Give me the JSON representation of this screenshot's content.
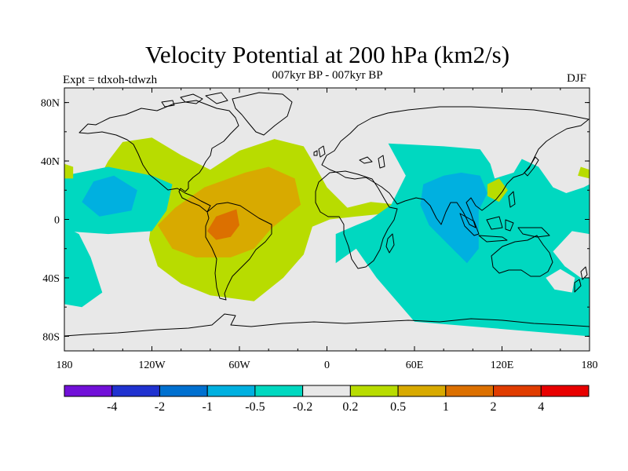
{
  "title": "Velocity Potential at 200 hPa (km2/s)",
  "subtitle": "007kyr BP - 007kyr BP",
  "experiment": "Expt = tdxoh-tdwzh",
  "season": "DJF",
  "lat_ticks": [
    "80N",
    "40N",
    "0",
    "40S",
    "80S"
  ],
  "lon_ticks": [
    "180",
    "120W",
    "60W",
    "0",
    "60E",
    "120E",
    "180"
  ],
  "colorbar": {
    "colors": [
      "#7110d8",
      "#2032d0",
      "#0070d0",
      "#00b0e0",
      "#00d8c0",
      "#e8e8e8",
      "#b8dc00",
      "#d8aa00",
      "#dc7000",
      "#e03c00",
      "#e80000"
    ],
    "labels": [
      "-4",
      "-2",
      "-1",
      "-0.5",
      "-0.2",
      "0.2",
      "0.5",
      "1",
      "2",
      "4"
    ]
  },
  "regions": [
    {
      "level": "0.2 to 0.5",
      "color": "#b8dc00",
      "pts": [
        [
          -180,
          -20
        ],
        [
          -166,
          10
        ],
        [
          -150,
          40
        ],
        [
          -140,
          53
        ],
        [
          -120,
          56
        ],
        [
          -100,
          44
        ],
        [
          -80,
          34
        ],
        [
          -60,
          47
        ],
        [
          -36,
          55
        ],
        [
          -16,
          50
        ],
        [
          -10,
          40
        ],
        [
          0,
          22
        ],
        [
          14,
          8
        ],
        [
          30,
          12
        ],
        [
          50,
          10
        ],
        [
          40,
          4
        ],
        [
          20,
          2
        ],
        [
          2,
          0
        ],
        [
          -10,
          -5
        ],
        [
          -16,
          -24
        ],
        [
          -30,
          -40
        ],
        [
          -50,
          -56
        ],
        [
          -80,
          -52
        ],
        [
          -100,
          -44
        ],
        [
          -116,
          -32
        ],
        [
          -122,
          -14
        ],
        [
          -120,
          0
        ],
        [
          -130,
          20
        ],
        [
          -150,
          20
        ],
        [
          -170,
          0
        ]
      ]
    },
    {
      "level": "-0.2 to -0.5",
      "color": "#00d8c0",
      "pts": [
        [
          42,
          52
        ],
        [
          80,
          50
        ],
        [
          105,
          48
        ],
        [
          128,
          44
        ],
        [
          145,
          36
        ],
        [
          155,
          22
        ],
        [
          164,
          18
        ],
        [
          176,
          22
        ],
        [
          180,
          24
        ],
        [
          180,
          -80
        ],
        [
          120,
          -75
        ],
        [
          60,
          -70
        ],
        [
          34,
          -40
        ],
        [
          20,
          -20
        ],
        [
          6,
          -30
        ],
        [
          6,
          -10
        ],
        [
          20,
          -4
        ],
        [
          30,
          0
        ],
        [
          44,
          10
        ],
        [
          54,
          30
        ]
      ]
    },
    {
      "level": "-0.2 to -0.5",
      "color": "#00d8c0",
      "pts": [
        [
          -180,
          30
        ],
        [
          -150,
          36
        ],
        [
          -120,
          30
        ],
        [
          -106,
          24
        ],
        [
          -110,
          6
        ],
        [
          -120,
          -8
        ],
        [
          -150,
          -10
        ],
        [
          -180,
          -8
        ]
      ]
    },
    {
      "level": "-0.2 to -0.5",
      "color": "#00d8c0",
      "pts": [
        [
          -180,
          -5
        ],
        [
          -170,
          -10
        ],
        [
          -162,
          -26
        ],
        [
          -154,
          -50
        ],
        [
          -168,
          -60
        ],
        [
          -180,
          -58
        ]
      ]
    },
    {
      "level": "0.5 to 1",
      "color": "#d8aa00",
      "pts": [
        [
          -116,
          -4
        ],
        [
          -104,
          8
        ],
        [
          -84,
          22
        ],
        [
          -56,
          32
        ],
        [
          -40,
          36
        ],
        [
          -22,
          28
        ],
        [
          -18,
          10
        ],
        [
          -38,
          -6
        ],
        [
          -50,
          -20
        ],
        [
          -66,
          -26
        ],
        [
          -90,
          -26
        ],
        [
          -106,
          -20
        ]
      ]
    },
    {
      "level": "1 to 2",
      "color": "#dc7000",
      "pts": [
        [
          -82,
          -8
        ],
        [
          -76,
          2
        ],
        [
          -62,
          7
        ],
        [
          -60,
          -4
        ],
        [
          -66,
          -12
        ],
        [
          -76,
          -14
        ]
      ]
    },
    {
      "level": "-0.5 to -1",
      "color": "#00b0e0",
      "pts": [
        [
          -168,
          12
        ],
        [
          -160,
          26
        ],
        [
          -146,
          30
        ],
        [
          -130,
          20
        ],
        [
          -134,
          6
        ],
        [
          -156,
          2
        ]
      ]
    },
    {
      "level": "-0.5 to -1",
      "color": "#00b0e0",
      "pts": [
        [
          66,
          24
        ],
        [
          80,
          30
        ],
        [
          92,
          32
        ],
        [
          105,
          30
        ],
        [
          110,
          18
        ],
        [
          104,
          6
        ],
        [
          104,
          -20
        ],
        [
          96,
          -30
        ],
        [
          86,
          -20
        ],
        [
          70,
          -4
        ],
        [
          64,
          10
        ]
      ]
    },
    {
      "level": "-0.2 to 0.2",
      "color": "#e8e8e8",
      "pts": [
        [
          105,
          48
        ],
        [
          112,
          38
        ],
        [
          115,
          28
        ],
        [
          128,
          32
        ],
        [
          134,
          42
        ],
        [
          128,
          46
        ],
        [
          114,
          50
        ]
      ]
    },
    {
      "level": "-0.2 to 0.2",
      "color": "#e8e8e8",
      "pts": [
        [
          155,
          -22
        ],
        [
          163,
          -32
        ],
        [
          174,
          -40
        ],
        [
          180,
          -40
        ],
        [
          180,
          -10
        ],
        [
          168,
          -8
        ]
      ]
    },
    {
      "level": "-0.2 to 0.2",
      "color": "#e8e8e8",
      "pts": [
        [
          150,
          -40
        ],
        [
          160,
          -34
        ],
        [
          170,
          -40
        ],
        [
          168,
          -50
        ],
        [
          156,
          -48
        ]
      ]
    },
    {
      "level": "0.2 to 0.5",
      "color": "#b8dc00",
      "pts": [
        [
          110,
          24
        ],
        [
          118,
          28
        ],
        [
          124,
          20
        ],
        [
          118,
          12
        ],
        [
          110,
          16
        ]
      ]
    },
    {
      "level": "0.2 to 0.5",
      "color": "#b8dc00",
      "pts": [
        [
          -180,
          38
        ],
        [
          -174,
          36
        ],
        [
          -174,
          28
        ],
        [
          -180,
          28
        ]
      ]
    },
    {
      "level": "0.2 to 0.5",
      "color": "#b8dc00",
      "pts": [
        [
          180,
          34
        ],
        [
          174,
          36
        ],
        [
          172,
          30
        ],
        [
          180,
          28
        ]
      ]
    }
  ]
}
